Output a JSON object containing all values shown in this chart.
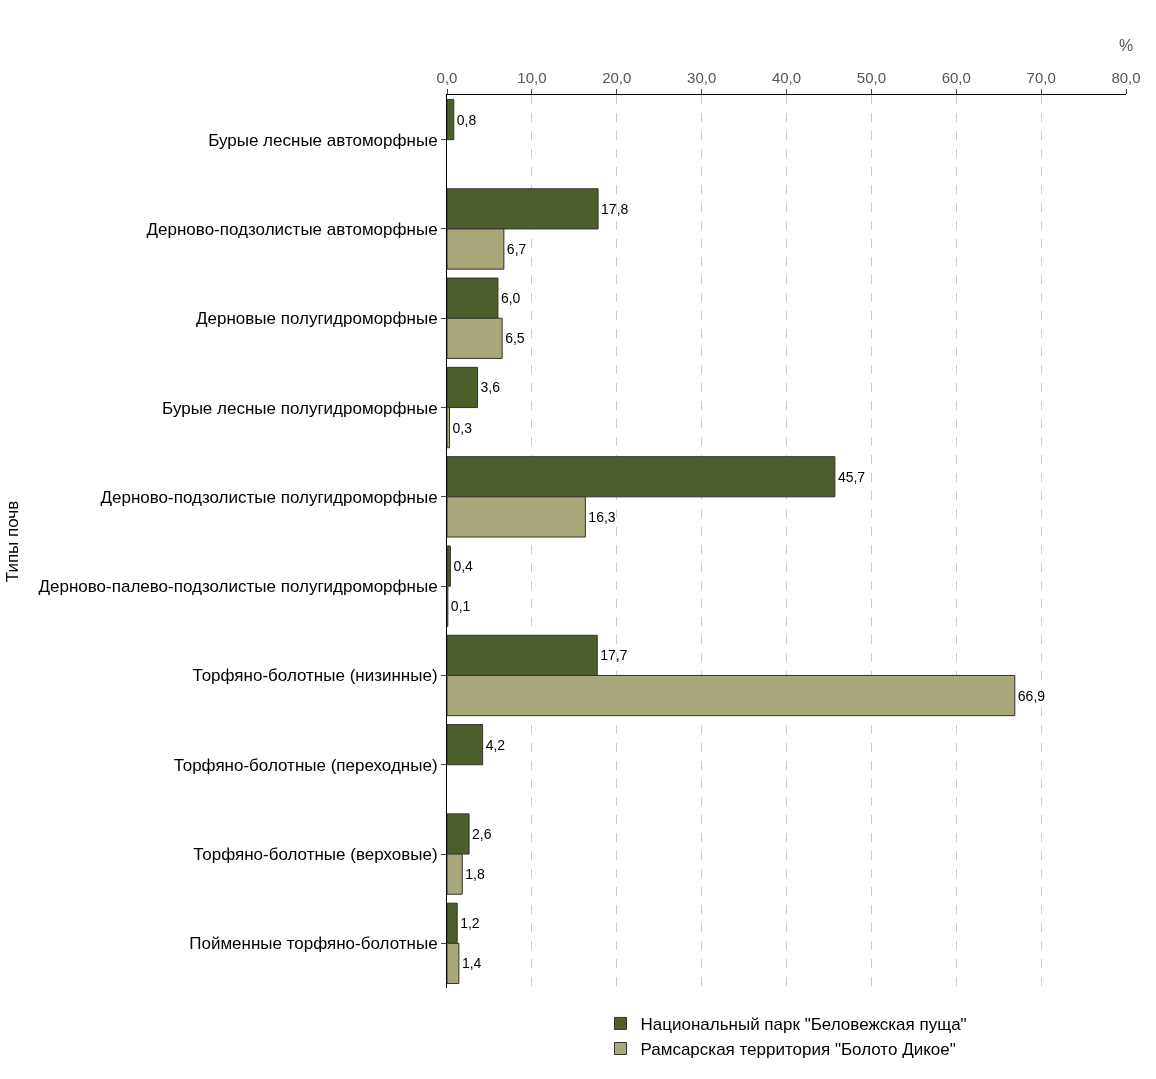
{
  "chart_data": {
    "type": "bar",
    "orientation": "horizontal",
    "categories": [
      "Бурые лесные автоморфные",
      "Дерново-подзолистые автоморфные",
      "Дерновые полугидроморфные",
      "Бурые лесные полугидроморфные",
      "Дерново-подзолистые полугидроморфные",
      "Дерново-палево-подзолистые полугидроморфные",
      "Торфяно-болотные (низинные)",
      "Торфяно-болотные (переходные)",
      "Торфяно-болотные (верховые)",
      "Пойменные торфяно-болотные"
    ],
    "series": [
      {
        "name": "Национальный парк \"Беловежская пуща\"",
        "color": "#4b5e2b",
        "values": [
          0.8,
          17.8,
          6.0,
          3.6,
          45.7,
          0.4,
          17.7,
          4.2,
          2.6,
          1.2
        ],
        "value_labels": [
          "0,8",
          "17,8",
          "6,0",
          "3,6",
          "45,7",
          "0,4",
          "17,7",
          "4,2",
          "2,6",
          "1,2"
        ]
      },
      {
        "name": "Рамсарская территория \"Болото Дикое\"",
        "color": "#a9a87a",
        "values": [
          null,
          6.7,
          6.5,
          0.3,
          16.3,
          0.1,
          66.9,
          null,
          1.8,
          1.4
        ],
        "value_labels": [
          null,
          "6,7",
          "6,5",
          "0,3",
          "16,3",
          "0,1",
          "66,9",
          null,
          "1,8",
          "1,4"
        ]
      }
    ],
    "xlabel": "%",
    "ylabel": "Типы почв",
    "xlim": [
      0,
      80
    ],
    "xticks": [
      {
        "value": 0,
        "label": "0,0"
      },
      {
        "value": 10,
        "label": "10,0"
      },
      {
        "value": 20,
        "label": "20,0"
      },
      {
        "value": 30,
        "label": "30,0"
      },
      {
        "value": 40,
        "label": "40,0"
      },
      {
        "value": 50,
        "label": "50,0"
      },
      {
        "value": 60,
        "label": "60,0"
      },
      {
        "value": 70,
        "label": "70,0"
      },
      {
        "value": 80,
        "label": "80,0"
      }
    ],
    "grid": "x",
    "legend": "bottom"
  }
}
